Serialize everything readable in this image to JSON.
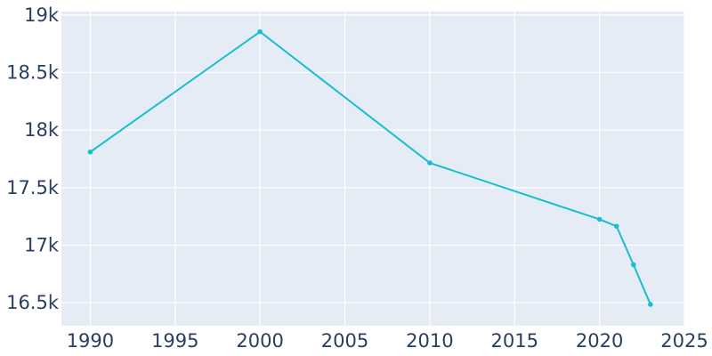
{
  "chart_data": {
    "type": "line",
    "title": "",
    "xlabel": "",
    "ylabel": "",
    "x_ticks": [
      {
        "value": 1990,
        "label": "1990"
      },
      {
        "value": 1995,
        "label": "1995"
      },
      {
        "value": 2000,
        "label": "2000"
      },
      {
        "value": 2005,
        "label": "2005"
      },
      {
        "value": 2010,
        "label": "2010"
      },
      {
        "value": 2015,
        "label": "2015"
      },
      {
        "value": 2020,
        "label": "2020"
      },
      {
        "value": 2025,
        "label": "2025"
      }
    ],
    "y_ticks": [
      {
        "value": 16500,
        "label": "16.5k"
      },
      {
        "value": 17000,
        "label": "17k"
      },
      {
        "value": 17500,
        "label": "17.5k"
      },
      {
        "value": 18000,
        "label": "18k"
      },
      {
        "value": 18500,
        "label": "18.5k"
      },
      {
        "value": 19000,
        "label": "19k"
      }
    ],
    "xlim": [
      1988.3,
      2025
    ],
    "ylim": [
      16300,
      19030
    ],
    "grid": true,
    "legend": "none",
    "series": [
      {
        "color": "#17becf",
        "x": [
          1990,
          2000,
          2010,
          2020,
          2021,
          2022,
          2023
        ],
        "y": [
          17810,
          18855,
          17715,
          17225,
          17165,
          16830,
          16485
        ]
      }
    ],
    "colors": {
      "plot_background": "#e5ecf6",
      "grid": "#ffffff",
      "tick_text": "#2a3f5f"
    }
  }
}
